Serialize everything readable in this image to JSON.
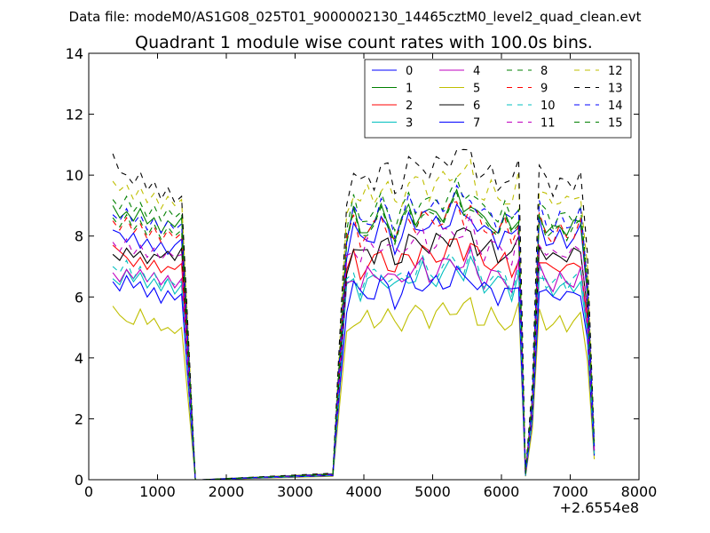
{
  "figure": {
    "suptitle": "Data file: modeM0/AS1G08_025T01_9000002130_14465cztM0_level2_quad_clean.evt"
  },
  "chart_data": {
    "type": "line",
    "title": "Quadrant 1 module wise count rates with 100.0s bins.",
    "xlabel": "",
    "ylabel": "",
    "xlim": [
      0,
      8000
    ],
    "ylim": [
      0,
      14
    ],
    "x_offset_label": "+2.6554e8",
    "xticks": [
      0,
      1000,
      2000,
      3000,
      4000,
      5000,
      6000,
      7000,
      8000
    ],
    "yticks": [
      0,
      2,
      4,
      6,
      8,
      10,
      12,
      14
    ],
    "xtick_labels": [
      "0",
      "1000",
      "2000",
      "3000",
      "4000",
      "5000",
      "6000",
      "7000",
      "8000"
    ],
    "ytick_labels": [
      "0",
      "2",
      "4",
      "6",
      "8",
      "10",
      "12",
      "14"
    ],
    "legend_position": "top-right",
    "legend_columns": 4,
    "colors": [
      "#0000ff",
      "#008000",
      "#ff0000",
      "#00bfbf",
      "#bf00bf",
      "#bfbf00",
      "#000000"
    ],
    "segments": [
      {
        "x_start": 350,
        "step": 100,
        "count": 11,
        "tail": [
          1550,
          1650
        ]
      },
      {
        "x_start": 3550,
        "step": 100,
        "count": 28,
        "tail": []
      },
      {
        "x_start": 6350,
        "step": 100,
        "count": 11,
        "tail": []
      }
    ],
    "series": [
      {
        "name": "0",
        "style": "solid",
        "base": [
          8.2,
          8.1,
          7.8,
          8.1,
          7.6,
          7.9,
          7.5,
          7.8,
          7.4,
          7.7,
          7.9
        ],
        "d": 8.6
      },
      {
        "name": "1",
        "style": "solid",
        "base": [
          9.0,
          8.6,
          8.8,
          8.5,
          8.9,
          8.4,
          8.6,
          8.1,
          8.5,
          8.3,
          8.6
        ],
        "d": 9.0
      },
      {
        "name": "2",
        "style": "solid",
        "base": [
          7.7,
          7.5,
          7.3,
          7.0,
          7.3,
          6.9,
          7.2,
          6.8,
          7.0,
          6.9,
          7.1
        ],
        "d": 7.6
      },
      {
        "name": "3",
        "style": "solid",
        "base": [
          6.6,
          6.4,
          6.9,
          6.5,
          6.8,
          6.3,
          6.6,
          6.2,
          6.6,
          6.1,
          6.4
        ],
        "d": 6.9
      },
      {
        "name": "4",
        "style": "solid",
        "base": [
          6.8,
          6.5,
          6.9,
          6.6,
          6.9,
          6.5,
          6.8,
          6.4,
          6.7,
          6.3,
          6.6
        ],
        "d": 7.1
      },
      {
        "name": "5",
        "style": "solid",
        "base": [
          5.7,
          5.4,
          5.2,
          5.1,
          5.6,
          5.1,
          5.3,
          4.9,
          5.0,
          4.8,
          5.0
        ],
        "d": 5.6
      },
      {
        "name": "6",
        "style": "solid",
        "base": [
          7.4,
          7.2,
          7.6,
          7.3,
          7.5,
          7.1,
          7.4,
          7.3,
          7.5,
          7.2,
          7.6
        ],
        "d": 8.0
      },
      {
        "name": "7",
        "style": "solid",
        "base": [
          6.5,
          6.2,
          6.7,
          6.3,
          6.5,
          6.0,
          6.3,
          5.8,
          6.2,
          5.9,
          6.1
        ],
        "d": 6.6
      },
      {
        "name": "8",
        "style": "dashed",
        "base": [
          9.2,
          8.9,
          9.3,
          8.8,
          9.1,
          8.6,
          9.0,
          8.5,
          8.9,
          8.6,
          8.8
        ],
        "d": 9.4
      },
      {
        "name": "9",
        "style": "dashed",
        "base": [
          8.5,
          8.2,
          8.6,
          8.1,
          8.4,
          7.9,
          8.3,
          7.8,
          8.2,
          7.9,
          8.1
        ],
        "d": 8.8
      },
      {
        "name": "10",
        "style": "dashed",
        "base": [
          7.0,
          6.8,
          7.2,
          6.6,
          7.0,
          6.5,
          6.8,
          6.3,
          6.6,
          6.4,
          6.5
        ],
        "d": 7.1
      },
      {
        "name": "11",
        "style": "dashed",
        "base": [
          7.8,
          7.5,
          7.9,
          7.4,
          7.7,
          7.3,
          7.6,
          7.2,
          7.5,
          7.3,
          7.4
        ],
        "d": 8.1
      },
      {
        "name": "12",
        "style": "dashed",
        "base": [
          9.8,
          9.5,
          9.7,
          9.2,
          9.6,
          9.1,
          9.4,
          8.9,
          9.3,
          9.0,
          9.2
        ],
        "d": 10.0
      },
      {
        "name": "13",
        "style": "dashed",
        "base": [
          10.7,
          10.1,
          10.0,
          9.7,
          10.1,
          9.5,
          9.8,
          9.2,
          9.6,
          9.1,
          9.3
        ],
        "d": 10.6
      },
      {
        "name": "14",
        "style": "dashed",
        "base": [
          8.7,
          8.5,
          8.9,
          8.4,
          8.7,
          8.2,
          8.6,
          8.1,
          8.5,
          8.2,
          8.4
        ],
        "d": 9.2
      },
      {
        "name": "15",
        "style": "dashed",
        "base": [
          8.6,
          8.3,
          8.7,
          8.2,
          8.5,
          8.0,
          8.4,
          7.9,
          8.3,
          8.0,
          8.2
        ],
        "d": 8.9
      }
    ]
  }
}
